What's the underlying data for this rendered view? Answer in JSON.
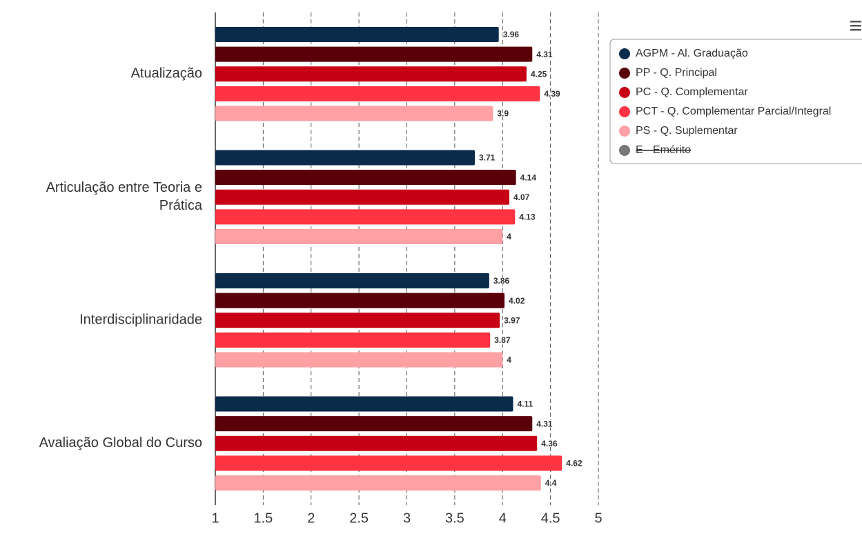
{
  "chart_data": {
    "type": "bar",
    "orientation": "horizontal",
    "categories": [
      "Atualização",
      "Articulação entre Teoria e Prática",
      "Interdisciplinaridade",
      "Avaliação Global do Curso"
    ],
    "series": [
      {
        "name": "AGPM - Al. Graduação",
        "color": "#0b2b4a",
        "values": [
          3.96,
          3.71,
          3.86,
          4.11
        ]
      },
      {
        "name": "PP - Q. Principal",
        "color": "#5a0009",
        "values": [
          4.31,
          4.14,
          4.02,
          4.31
        ]
      },
      {
        "name": "PC - Q. Complementar",
        "color": "#c70015",
        "values": [
          4.25,
          4.07,
          3.97,
          4.36
        ]
      },
      {
        "name": "PCT - Q. Complementar Parcial/Integral",
        "color": "#ff3342",
        "values": [
          4.39,
          4.13,
          3.87,
          4.62
        ]
      },
      {
        "name": "PS - Q. Suplementar",
        "color": "#ffa0a4",
        "values": [
          3.9,
          4,
          4,
          4.4
        ]
      },
      {
        "name": "E - Emérito",
        "color": "#777777",
        "hidden": true,
        "values": [
          null,
          null,
          null,
          null
        ]
      }
    ],
    "xlim": [
      1,
      5
    ],
    "xticks": [
      1,
      1.5,
      2,
      2.5,
      3,
      3.5,
      4,
      4.5,
      5
    ],
    "grid": true,
    "legend": "top-right"
  }
}
